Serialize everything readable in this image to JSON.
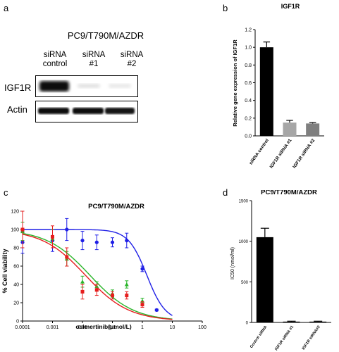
{
  "panels": {
    "a": {
      "letter": "a",
      "title": "PC9/T790M/AZDR",
      "lanes": [
        {
          "line1": "siRNA",
          "line2": "control"
        },
        {
          "line1": "siRNA",
          "line2": "#1"
        },
        {
          "line1": "siRNA",
          "line2": "#2"
        }
      ],
      "rows": [
        "IGF1R",
        "Actin"
      ]
    },
    "b": {
      "letter": "b"
    },
    "c": {
      "letter": "c"
    },
    "d": {
      "letter": "d"
    }
  },
  "chart_data": [
    {
      "id": "b",
      "type": "bar",
      "title": "IGF1R",
      "ylabel": "Relative gene expression of IGF1R",
      "categories": [
        "siRNA control",
        "IGF1R siRNA #1",
        "IGF1R siRNA #2"
      ],
      "values": [
        1.0,
        0.15,
        0.14
      ],
      "errors": [
        0.06,
        0.025,
        0.01
      ],
      "colors": [
        "#000000",
        "#a6a6a6",
        "#7f7f7f"
      ],
      "ylim": [
        0,
        1.2
      ],
      "yticks": [
        "0.0",
        "0.2",
        "0.4",
        "0.6",
        "0.8",
        "1.0",
        "1.2"
      ]
    },
    {
      "id": "c",
      "type": "scatter",
      "title": "PC9/T790M/AZDR",
      "xlabel": "osimertinib(μmol/L)",
      "ylabel": "% Cell viability",
      "xscale": "log",
      "xlim": [
        0.0001,
        100
      ],
      "ylim": [
        0,
        120
      ],
      "xticks": [
        "0.0001",
        "0.001",
        "0.01",
        "0.1",
        "1",
        "10",
        "100"
      ],
      "yticks": [
        "0",
        "20",
        "40",
        "60",
        "80",
        "100",
        "120"
      ],
      "series": [
        {
          "color": "#1f1fe6",
          "marker": "circle",
          "x": [
            0.0001,
            0.001,
            0.003,
            0.01,
            0.03,
            0.1,
            0.3,
            1,
            3
          ],
          "y": [
            86,
            88,
            100,
            88,
            86,
            86,
            88,
            57,
            12
          ],
          "err": [
            12,
            12,
            12,
            10,
            8,
            5,
            8,
            3,
            1
          ],
          "fit": {
            "top": 100,
            "bottom": 0,
            "logIC50": 0.15,
            "hill": 1.4
          }
        },
        {
          "color": "#2bb52b",
          "marker": "triangle",
          "x": [
            0.0001,
            0.001,
            0.003,
            0.01,
            0.03,
            0.1,
            0.3,
            1
          ],
          "y": [
            98,
            90,
            68,
            43,
            38,
            30,
            40,
            22
          ],
          "err": [
            10,
            10,
            8,
            6,
            5,
            4,
            4,
            3
          ],
          "fit": {
            "top": 100,
            "bottom": 0,
            "logIC50": -1.75,
            "hill": 0.6
          }
        },
        {
          "color": "#e61e1e",
          "marker": "square",
          "x": [
            0.0001,
            0.001,
            0.003,
            0.01,
            0.03,
            0.1,
            0.3,
            1
          ],
          "y": [
            100,
            92,
            70,
            32,
            34,
            28,
            28,
            18
          ],
          "err": [
            20,
            12,
            10,
            8,
            6,
            4,
            4,
            3
          ],
          "fit": {
            "top": 100,
            "bottom": 0,
            "logIC50": -1.9,
            "hill": 0.6
          }
        }
      ]
    },
    {
      "id": "d",
      "type": "bar",
      "title": "PC9/T790M/AZDR",
      "ylabel": "IC50 (nmol/ml)",
      "categories": [
        "Control siRNA",
        "IGF1R siRNA #1",
        "IGF1R siRNA#2"
      ],
      "values": [
        1050,
        10,
        10
      ],
      "errors": [
        110,
        5,
        5
      ],
      "colors": [
        "#000000",
        "#000000",
        "#000000"
      ],
      "ylim": [
        0,
        1500
      ],
      "yticks": [
        "0",
        "500",
        "1000",
        "1500"
      ]
    }
  ]
}
